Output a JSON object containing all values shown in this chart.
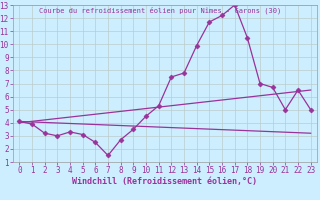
{
  "title": "Courbe du refroidissement éolien pour Nîmes - Garons (30)",
  "xlabel": "Windchill (Refroidissement éolien,°C)",
  "bg_color": "#cceeff",
  "line_color": "#993399",
  "grid_color": "#bbcccc",
  "xlim": [
    -0.5,
    23.5
  ],
  "ylim": [
    1,
    13
  ],
  "xticks": [
    0,
    1,
    2,
    3,
    4,
    5,
    6,
    7,
    8,
    9,
    10,
    11,
    12,
    13,
    14,
    15,
    16,
    17,
    18,
    19,
    20,
    21,
    22,
    23
  ],
  "yticks": [
    1,
    2,
    3,
    4,
    5,
    6,
    7,
    8,
    9,
    10,
    11,
    12,
    13
  ],
  "line1_x": [
    0,
    1,
    2,
    3,
    4,
    5,
    6,
    7,
    8,
    9,
    10,
    11,
    12,
    13,
    14,
    15,
    16,
    17,
    18,
    19,
    20,
    21,
    22,
    23
  ],
  "line1_y": [
    4.1,
    3.9,
    3.2,
    3.0,
    3.3,
    3.1,
    2.5,
    1.5,
    2.7,
    3.5,
    4.5,
    5.3,
    7.5,
    7.8,
    9.9,
    11.7,
    12.2,
    13.0,
    10.5,
    7.0,
    6.7,
    5.0,
    6.5,
    5.0
  ],
  "line2_x": [
    0,
    23
  ],
  "line2_y": [
    4.1,
    3.2
  ],
  "line3_x": [
    0,
    23
  ],
  "line3_y": [
    4.0,
    6.5
  ],
  "marker": "D",
  "markersize": 2.5,
  "linewidth": 0.9,
  "tick_fontsize": 5.5,
  "xlabel_fontsize": 6,
  "title_fontsize": 5
}
